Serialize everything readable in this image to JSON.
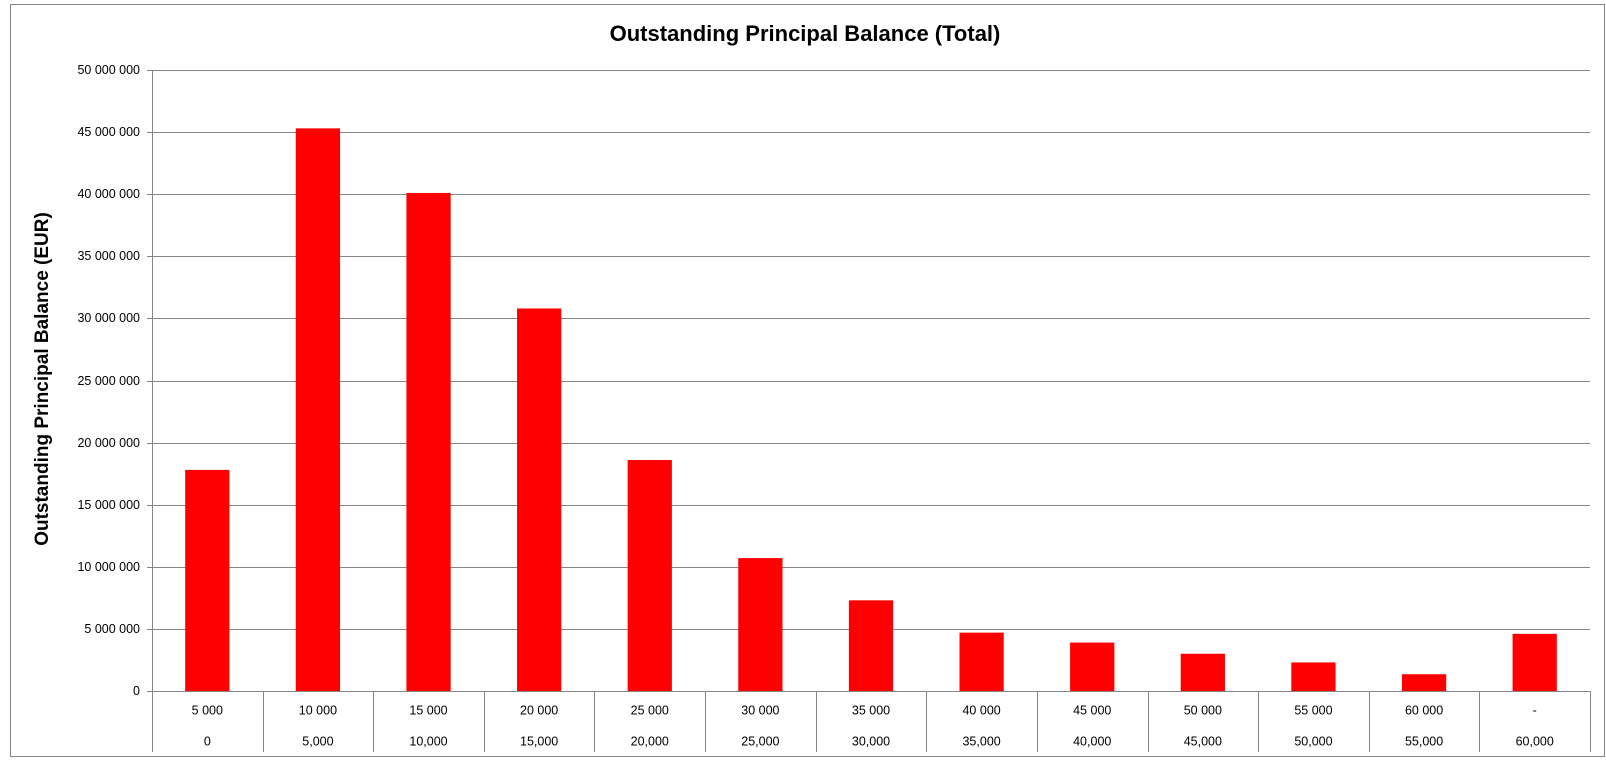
{
  "chart_data": {
    "type": "bar",
    "title": "Outstanding Principal Balance (Total)",
    "y_label": "Outstanding Principal Balance (EUR)",
    "categories": [
      "5 000",
      "10 000",
      "15 000",
      "20 000",
      "25 000",
      "30 000",
      "35 000",
      "40 000",
      "45 000",
      "50 000",
      "55 000",
      "60 000",
      "-"
    ],
    "categories_lower": [
      "0",
      "5,000",
      "10,000",
      "15,000",
      "20,000",
      "25,000",
      "30,000",
      "35,000",
      "40,000",
      "45,000",
      "50,000",
      "55,000",
      "60,000"
    ],
    "values": [
      17800000,
      45300000,
      40100000,
      30800000,
      18600000,
      10700000,
      7300000,
      4700000,
      3900000,
      3000000,
      2300000,
      1350000,
      4600000
    ],
    "color": "#ff0000",
    "ylim": [
      0,
      50000000
    ],
    "yticks": [
      0,
      {
        "value": 5000000,
        "label": "5 000 000"
      },
      {
        "value": 10000000,
        "label": "10 000 000"
      },
      {
        "value": 15000000,
        "label": "15 000 000"
      },
      {
        "value": 20000000,
        "label": "20 000 000"
      },
      {
        "value": 25000000,
        "label": "25 000 000"
      },
      {
        "value": 30000000,
        "label": "30 000 000"
      },
      {
        "value": 35000000,
        "label": "35 000 000"
      },
      {
        "value": 40000000,
        "label": "40 000 000"
      },
      {
        "value": 45000000,
        "label": "45 000 000"
      },
      {
        "value": 50000000,
        "label": "50 000 000"
      }
    ],
    "grid": true
  }
}
